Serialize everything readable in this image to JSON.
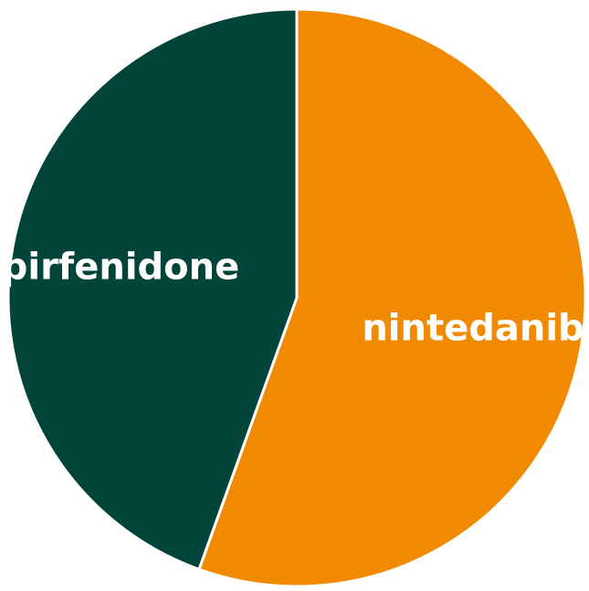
{
  "chart_data": {
    "type": "pie",
    "title": "",
    "slices": [
      {
        "label": "nintedanib",
        "value": 55.5,
        "color": "#f18a00"
      },
      {
        "label": "pirfenidone",
        "value": 44.5,
        "color": "#01443a"
      }
    ],
    "start_angle_deg": 0,
    "direction": "clockwise",
    "slice_border_color": "#ffffff",
    "legend": "none"
  }
}
